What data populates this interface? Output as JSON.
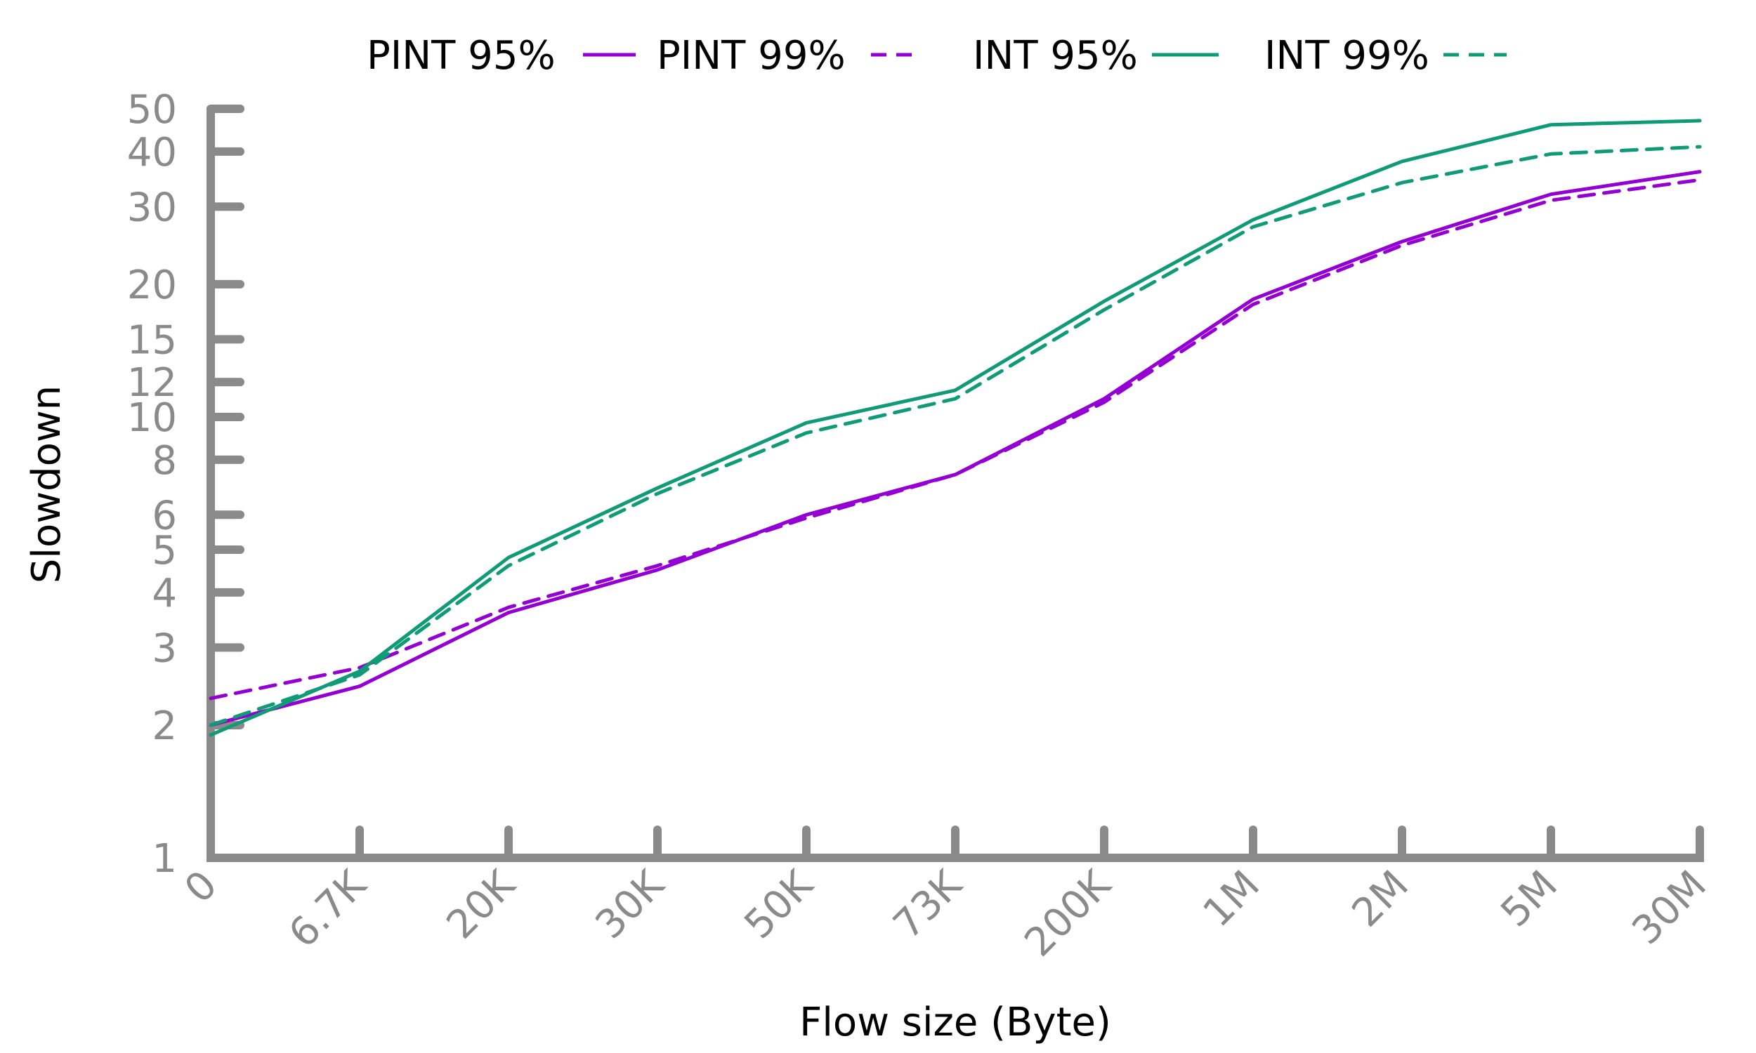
{
  "chart_data": {
    "type": "line",
    "title": "",
    "xlabel": "Flow size (Byte)",
    "ylabel": "Slowdown",
    "yscale": "log",
    "ylim": [
      1,
      50
    ],
    "y_ticks": [
      1,
      2,
      3,
      4,
      5,
      6,
      8,
      10,
      12,
      15,
      20,
      30,
      40,
      50
    ],
    "x_tick_labels": [
      "0",
      "6.7K",
      "20K",
      "30K",
      "50K",
      "73K",
      "200K",
      "1M",
      "2M",
      "5M",
      "30M"
    ],
    "x": [
      "0",
      "6.7K",
      "20K",
      "30K",
      "50K",
      "73K",
      "200K",
      "1M",
      "2M",
      "5M",
      "30M"
    ],
    "legend_position": "top",
    "grid": false,
    "series": [
      {
        "name": "PINT 95%",
        "color": "#9400D3",
        "dash": "solid",
        "values": [
          2.0,
          2.45,
          3.6,
          4.5,
          6.0,
          7.4,
          11.0,
          18.5,
          25.0,
          32.0,
          36.0
        ]
      },
      {
        "name": "PINT 99%",
        "color": "#9400D3",
        "dash": "dashed",
        "values": [
          2.3,
          2.7,
          3.7,
          4.6,
          5.9,
          7.4,
          10.8,
          18.0,
          24.5,
          31.0,
          34.5
        ]
      },
      {
        "name": "INT 95%",
        "color": "#0F9B77",
        "dash": "solid",
        "values": [
          1.9,
          2.65,
          4.8,
          6.9,
          9.7,
          11.5,
          18.3,
          28.0,
          38.0,
          46.0,
          47.0
        ]
      },
      {
        "name": "INT 99%",
        "color": "#0F9B77",
        "dash": "dashed",
        "values": [
          2.0,
          2.6,
          4.6,
          6.7,
          9.2,
          11.0,
          17.5,
          27.0,
          34.0,
          39.5,
          41.0
        ]
      }
    ]
  }
}
